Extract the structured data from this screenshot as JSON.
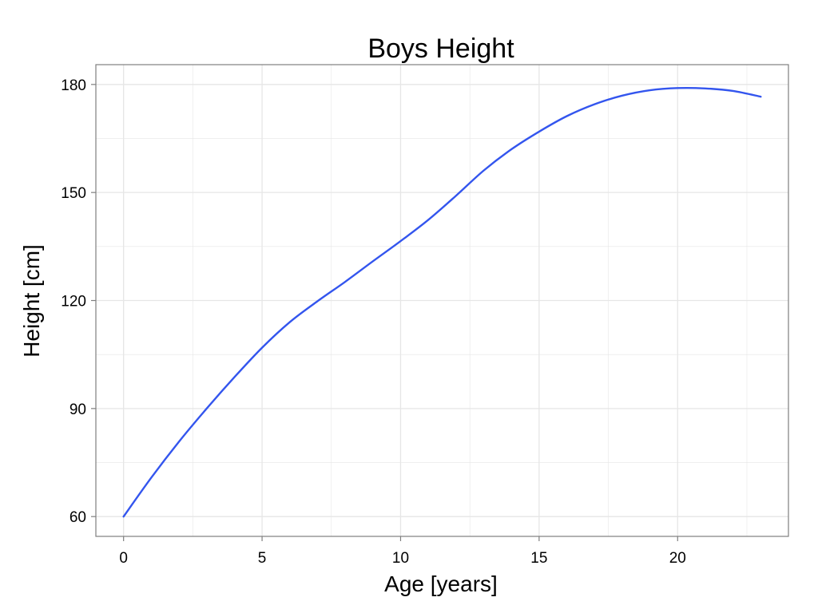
{
  "chart_data": {
    "type": "line",
    "title": "Boys Height",
    "xlabel": "Age [years]",
    "ylabel": "Height [cm]",
    "xlim": [
      -1,
      24
    ],
    "ylim": [
      54.5,
      185.5
    ],
    "x_ticks": [
      0,
      5,
      10,
      15,
      20
    ],
    "y_ticks": [
      60,
      90,
      120,
      150,
      180
    ],
    "grid": true,
    "colors": {
      "line": "#3355ee",
      "grid": "#e6e6e6",
      "frame": "#7f7f7f"
    },
    "series": [
      {
        "x": [
          0,
          1,
          2,
          3,
          4,
          5,
          6,
          7,
          8,
          9,
          10,
          11,
          12,
          13,
          14,
          15,
          16,
          17,
          18,
          19,
          20,
          21,
          22,
          23
        ],
        "values": [
          60,
          70.8,
          80.8,
          90.0,
          98.7,
          106.9,
          114.0,
          119.8,
          125.2,
          130.9,
          136.5,
          142.4,
          149.1,
          156.1,
          162.0,
          166.9,
          171.2,
          174.5,
          176.9,
          178.4,
          179.0,
          178.9,
          178.2,
          176.6
        ]
      }
    ]
  }
}
